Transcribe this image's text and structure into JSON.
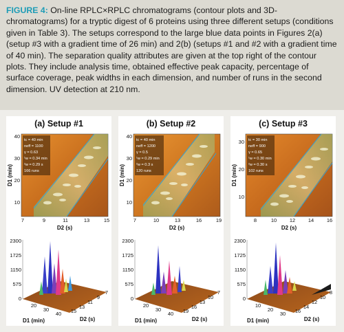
{
  "caption": {
    "label": "FIGURE 4:",
    "text": "On-line RPLC×RPLC chromatograms (contour plots and 3D-chromatograms) for a tryptic digest of 6 proteins using three different setups (conditions given in Table 3). The setups correspond to the large blue data points in Figures 2(a) (setup #3 with a gradient time of 26 min) and 2(b) (setups #1 and #2 with a gradient time of 40 min). The separation quality attributes are given at the top right of the contour plots. They include analysis time, obtained effective peak capacity, percentage of surface coverage, peak widths in each dimension, and number of runs in the second dimension. UV detection at 210 nm."
  },
  "panels": [
    {
      "title": "(a) Setup #1",
      "annotations": [
        "tc = 40 min",
        "neff = 1100",
        "γ = 0.63",
        "¹w = 0.34 min",
        "²w = 0.29 s",
        "166 runs"
      ],
      "contour": {
        "ylabel": "D1 (min)",
        "xlabel": "D2 (s)",
        "yticks": [
          "40",
          "30",
          "20",
          "10"
        ],
        "xticks": [
          "7",
          "9",
          "11",
          "13",
          "15"
        ]
      },
      "surface": {
        "zticks": [
          "2300",
          "1725",
          "1150",
          "575",
          "0"
        ],
        "d1_label": "D1 (min)",
        "d2_label": "D2 (s)",
        "d1_ticks": [
          "20",
          "30",
          "40"
        ],
        "d2_ticks": [
          "15",
          "13",
          "11",
          "9",
          "7"
        ]
      }
    },
    {
      "title": "(b) Setup #2",
      "annotations": [
        "tc = 40 min",
        "neff = 1200",
        "γ = 0.5",
        "¹w = 0.29 min",
        "²w = 0.3 s",
        "120 runs"
      ],
      "contour": {
        "ylabel": "D1 (min)",
        "xlabel": "D2 (s)",
        "yticks": [
          "40",
          "30",
          "20",
          "10"
        ],
        "xticks": [
          "7",
          "10",
          "13",
          "16",
          "19"
        ]
      },
      "surface": {
        "zticks": [
          "2300",
          "1725",
          "1150",
          "575",
          "0"
        ],
        "d1_label": "D1 (min)",
        "d2_label": "D2 (s)",
        "d1_ticks": [
          "20",
          "30",
          "40"
        ],
        "d2_ticks": [
          "19",
          "16",
          "13",
          "10",
          "7"
        ]
      }
    },
    {
      "title": "(c) Setup #3",
      "annotations": [
        "tc = 30 min",
        "neff = 900",
        "γ = 0.65",
        "¹w = 0.30 min",
        "²w = 0.30 s",
        "102 runs"
      ],
      "contour": {
        "ylabel": "D1 (min)",
        "xlabel": "D2 (s)",
        "yticks": [
          "30",
          "20",
          "10"
        ],
        "xticks": [
          "8",
          "10",
          "12",
          "14",
          "16"
        ]
      },
      "surface": {
        "zticks": [
          "2300",
          "1725",
          "1150",
          "575",
          "0"
        ],
        "d1_label": "D1 (min)",
        "d2_label": "D2 (s)",
        "d1_ticks": [
          "10",
          "20",
          "30"
        ],
        "d2_ticks": [
          "16",
          "14",
          "12",
          "10",
          "8"
        ]
      }
    }
  ]
}
